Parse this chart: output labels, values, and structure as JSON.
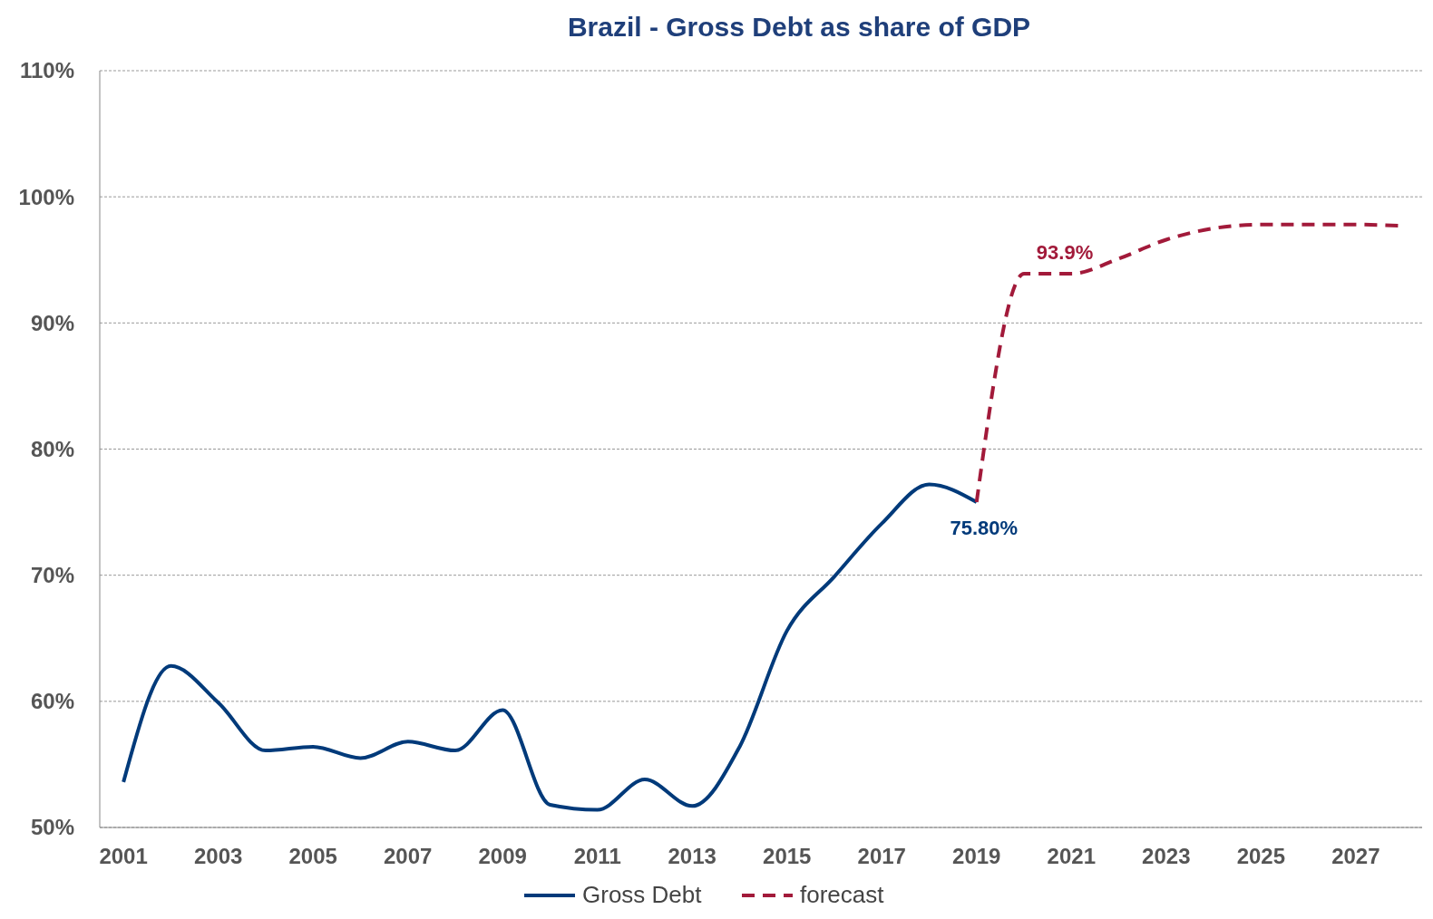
{
  "chart_data": {
    "type": "line",
    "title": "Brazil - Gross Debt as share of GDP",
    "series": [
      {
        "name": "Gross Debt",
        "color": "#003a7a",
        "line_style": "solid",
        "x": [
          2001,
          2002,
          2003,
          2004,
          2005,
          2006,
          2007,
          2008,
          2009,
          2010,
          2011,
          2012,
          2013,
          2014,
          2015,
          2016,
          2017,
          2018,
          2019
        ],
        "values": [
          53.6,
          62.8,
          59.9,
          56.1,
          56.4,
          55.5,
          56.8,
          56.1,
          59.3,
          51.8,
          51.4,
          53.8,
          51.7,
          56.4,
          65.6,
          69.9,
          74.1,
          77.2,
          75.8
        ]
      },
      {
        "name": "forecast",
        "color": "#a21a3a",
        "line_style": "dashed",
        "x": [
          2019,
          2020,
          2021,
          2022,
          2023,
          2024,
          2025,
          2026,
          2027,
          2028
        ],
        "values": [
          75.8,
          93.9,
          93.9,
          95.1,
          96.6,
          97.5,
          97.8,
          97.8,
          97.8,
          97.7
        ]
      }
    ],
    "xlim": [
      2000.5,
      2028.4
    ],
    "xticks": [
      2001,
      2003,
      2005,
      2007,
      2009,
      2011,
      2013,
      2015,
      2017,
      2019,
      2021,
      2023,
      2025,
      2027
    ],
    "ylim": [
      50,
      110
    ],
    "yticks": [
      {
        "value": 50,
        "label": "50%"
      },
      {
        "value": 60,
        "label": "60%"
      },
      {
        "value": 70,
        "label": "70%"
      },
      {
        "value": 80,
        "label": "80%"
      },
      {
        "value": 90,
        "label": "90%"
      },
      {
        "value": 100,
        "label": "100%"
      },
      {
        "value": 110,
        "label": "110%"
      }
    ],
    "grid": "y",
    "legend": "bottom",
    "marker": "none",
    "annotations": [
      {
        "text": "75.80%",
        "x": 2019,
        "y": 75.8
      },
      {
        "text": "93.9%",
        "x": 2020,
        "y": 93.9
      }
    ]
  }
}
